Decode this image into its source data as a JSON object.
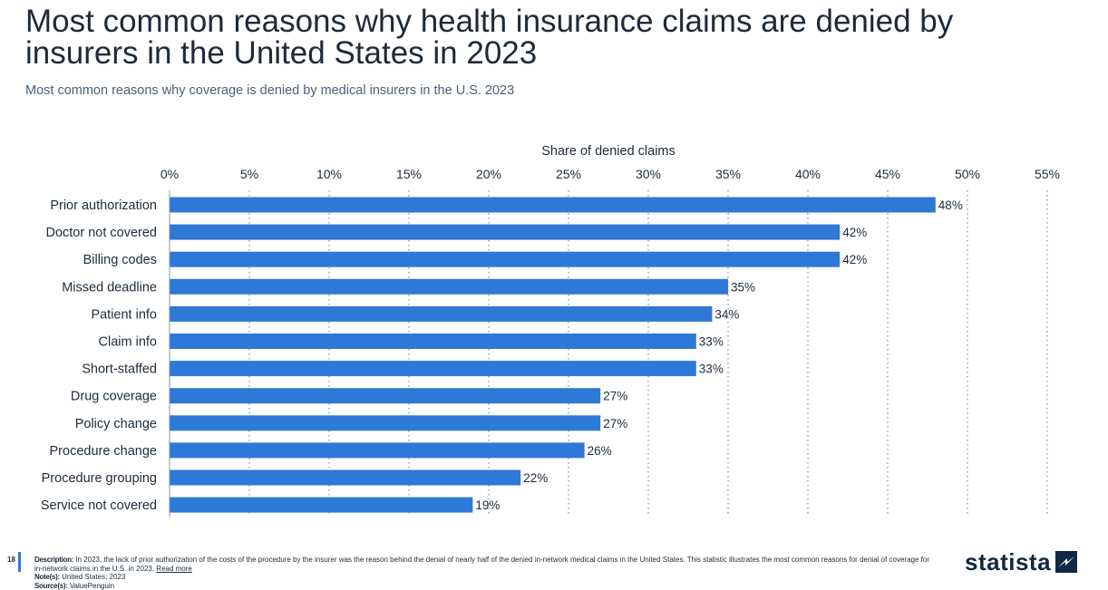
{
  "header": {
    "title": "Most common reasons why health insurance claims are denied by insurers in the United States in 2023",
    "subtitle": "Most common reasons why coverage is denied by medical insurers in the U.S. 2023"
  },
  "chart_data": {
    "type": "bar",
    "orientation": "horizontal",
    "xlabel": "Share of denied claims",
    "xlim": [
      0,
      55
    ],
    "xticks": [
      0,
      5,
      10,
      15,
      20,
      25,
      30,
      35,
      40,
      45,
      50,
      55
    ],
    "tick_suffix": "%",
    "grid": true,
    "bar_color": "#2e78d8",
    "categories": [
      "Prior authorization",
      "Doctor not covered",
      "Billing codes",
      "Missed deadline",
      "Patient info",
      "Claim info",
      "Short-staffed",
      "Drug coverage",
      "Policy change",
      "Procedure change",
      "Procedure grouping",
      "Service not covered"
    ],
    "values": [
      48,
      42,
      42,
      35,
      34,
      33,
      33,
      27,
      27,
      26,
      22,
      19
    ]
  },
  "footer": {
    "page_number": "18",
    "description_label": "Description:",
    "description": "In 2023, the lack of prior authorization of the costs of the procedure by the insurer was the reason behind the denial of nearly half of the denied in-network medical claims in the United States. This statistic illustrates the most common reasons for denial of coverage for in-network claims in the U.S. in 2023.",
    "read_more": "Read more",
    "notes_label": "Note(s):",
    "notes": "United States; 2023",
    "sources_label": "Source(s):",
    "sources": "ValuePenguin"
  },
  "logo": {
    "text": "statista",
    "icon": "statista-logo-icon"
  }
}
